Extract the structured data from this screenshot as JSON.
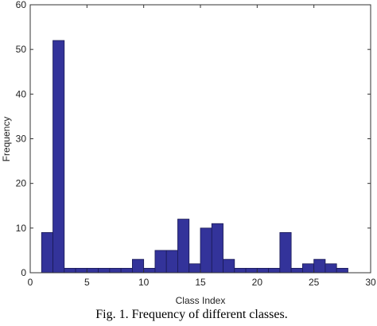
{
  "chart_data": {
    "type": "histogram",
    "xlabel": "Class Index",
    "ylabel": "Frequency",
    "bins": [
      1,
      2,
      3,
      4,
      5,
      6,
      7,
      8,
      9,
      10,
      11,
      12,
      13,
      14,
      15,
      16,
      17,
      18,
      19,
      20,
      21,
      22,
      23,
      24,
      25,
      26,
      27,
      28
    ],
    "values": [
      9,
      52,
      1,
      1,
      1,
      1,
      1,
      1,
      3,
      1,
      5,
      5,
      12,
      2,
      10,
      11,
      3,
      1,
      1,
      1,
      1,
      9,
      1,
      2,
      3,
      2,
      1
    ],
    "color": "#33339a",
    "xlim": [
      0,
      30
    ],
    "xticks": [
      0,
      5,
      10,
      15,
      20,
      25,
      30
    ],
    "ylim": [
      0,
      60
    ],
    "yticks": [
      0,
      10,
      20,
      30,
      40,
      50,
      60
    ]
  },
  "caption": "Fig. 1. Frequency of different classes."
}
